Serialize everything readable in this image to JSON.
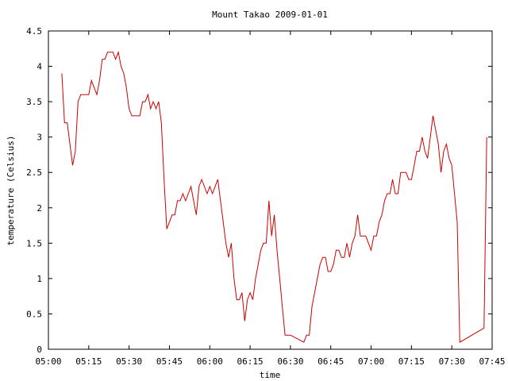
{
  "chart_data": {
    "type": "line",
    "title": "Mount Takao 2009-01-01",
    "xlabel": "time",
    "ylabel": "temperature (Celsius)",
    "xlim": [
      "05:00",
      "07:45"
    ],
    "ylim": [
      0,
      4.5
    ],
    "grid": false,
    "x_ticks": [
      "05:00",
      "05:15",
      "05:30",
      "05:45",
      "06:00",
      "06:15",
      "06:30",
      "06:45",
      "07:00",
      "07:15",
      "07:30",
      "07:45"
    ],
    "y_ticks": [
      "0",
      "0.5",
      "1",
      "1.5",
      "2",
      "2.5",
      "3",
      "3.5",
      "4",
      "4.5"
    ],
    "series": [
      {
        "color": "#cc0000",
        "x": [
          "05:05",
          "05:06",
          "05:07",
          "05:08",
          "05:09",
          "05:10",
          "05:11",
          "05:12",
          "05:13",
          "05:14",
          "05:15",
          "05:16",
          "05:17",
          "05:18",
          "05:19",
          "05:20",
          "05:21",
          "05:22",
          "05:23",
          "05:24",
          "05:25",
          "05:26",
          "05:27",
          "05:28",
          "05:29",
          "05:30",
          "05:31",
          "05:32",
          "05:33",
          "05:34",
          "05:35",
          "05:36",
          "05:37",
          "05:38",
          "05:39",
          "05:40",
          "05:41",
          "05:42",
          "05:43",
          "05:44",
          "05:45",
          "05:46",
          "05:47",
          "05:48",
          "05:49",
          "05:50",
          "05:51",
          "05:52",
          "05:53",
          "05:54",
          "05:55",
          "05:56",
          "05:57",
          "05:58",
          "05:59",
          "06:00",
          "06:01",
          "06:02",
          "06:03",
          "06:04",
          "06:05",
          "06:06",
          "06:07",
          "06:08",
          "06:09",
          "06:10",
          "06:11",
          "06:12",
          "06:13",
          "06:14",
          "06:15",
          "06:16",
          "06:17",
          "06:18",
          "06:19",
          "06:20",
          "06:21",
          "06:22",
          "06:23",
          "06:24",
          "06:25",
          "06:26",
          "06:27",
          "06:28",
          "06:29",
          "06:30",
          "06:35",
          "06:36",
          "06:37",
          "06:38",
          "06:39",
          "06:40",
          "06:41",
          "06:42",
          "06:43",
          "06:44",
          "06:45",
          "06:46",
          "06:47",
          "06:48",
          "06:49",
          "06:50",
          "06:51",
          "06:52",
          "06:53",
          "06:54",
          "06:55",
          "06:56",
          "06:57",
          "06:58",
          "06:59",
          "07:00",
          "07:01",
          "07:02",
          "07:03",
          "07:04",
          "07:05",
          "07:06",
          "07:07",
          "07:08",
          "07:09",
          "07:10",
          "07:11",
          "07:12",
          "07:13",
          "07:14",
          "07:15",
          "07:16",
          "07:17",
          "07:18",
          "07:19",
          "07:20",
          "07:21",
          "07:22",
          "07:23",
          "07:24",
          "07:25",
          "07:26",
          "07:27",
          "07:28",
          "07:29",
          "07:30",
          "07:31",
          "07:32",
          "07:33",
          "07:42",
          "07:43"
        ],
        "y": [
          3.9,
          3.2,
          3.2,
          2.9,
          2.6,
          2.8,
          3.5,
          3.6,
          3.6,
          3.6,
          3.6,
          3.8,
          3.7,
          3.6,
          3.8,
          4.1,
          4.1,
          4.2,
          4.2,
          4.2,
          4.1,
          4.2,
          4.0,
          3.9,
          3.7,
          3.4,
          3.3,
          3.3,
          3.3,
          3.3,
          3.5,
          3.5,
          3.6,
          3.4,
          3.5,
          3.4,
          3.5,
          3.2,
          2.4,
          1.7,
          1.8,
          1.9,
          1.9,
          2.1,
          2.1,
          2.2,
          2.1,
          2.2,
          2.3,
          2.1,
          1.9,
          2.3,
          2.4,
          2.3,
          2.2,
          2.3,
          2.2,
          2.3,
          2.4,
          2.1,
          1.8,
          1.5,
          1.3,
          1.5,
          1.0,
          0.7,
          0.7,
          0.8,
          0.4,
          0.7,
          0.8,
          0.7,
          1.0,
          1.2,
          1.4,
          1.5,
          1.5,
          2.1,
          1.6,
          1.9,
          1.4,
          1.0,
          0.6,
          0.2,
          0.2,
          0.2,
          0.1,
          0.2,
          0.2,
          0.6,
          0.8,
          1.0,
          1.2,
          1.3,
          1.3,
          1.1,
          1.1,
          1.2,
          1.4,
          1.4,
          1.3,
          1.3,
          1.5,
          1.3,
          1.5,
          1.6,
          1.9,
          1.6,
          1.6,
          1.6,
          1.5,
          1.4,
          1.6,
          1.6,
          1.8,
          1.9,
          2.1,
          2.2,
          2.2,
          2.4,
          2.2,
          2.2,
          2.5,
          2.5,
          2.5,
          2.4,
          2.4,
          2.6,
          2.8,
          2.8,
          3.0,
          2.8,
          2.7,
          3.0,
          3.3,
          3.1,
          2.9,
          2.5,
          2.8,
          2.9,
          2.7,
          2.6,
          2.2,
          1.8,
          0.1,
          0.3,
          3.0
        ]
      }
    ]
  }
}
